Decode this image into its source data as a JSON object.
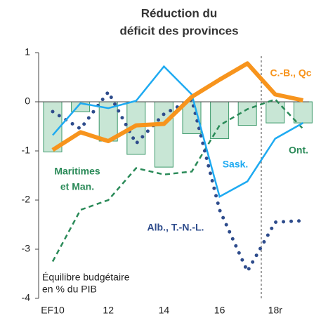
{
  "chart_data": {
    "type": "combo",
    "title": [
      "Réduction du",
      "déficit des provinces"
    ],
    "note": [
      "Équilibre budgétaire",
      "en % du PIB"
    ],
    "categories": [
      "EF10",
      null,
      "12",
      null,
      "14",
      null,
      "16",
      null,
      "18r",
      null
    ],
    "values": [
      -1.02,
      -0.2,
      -0.8,
      -1.07,
      -1.33,
      -0.65,
      -0.75,
      -0.48,
      -0.43,
      -0.43
    ],
    "bar_color": "#c8e6d5",
    "bar_edge": "#3e9a6c",
    "series": [
      {
        "name": [
          "Maritimes",
          "et Man."
        ],
        "color": "#2a8a58",
        "style": "dashed",
        "values": [
          -3.25,
          -2.2,
          -2.0,
          -1.35,
          -1.48,
          -1.42,
          -0.48,
          -0.15,
          0.05,
          -0.55
        ]
      },
      {
        "name": "Alb., T.-N.-L.",
        "color": "#2e4c8c",
        "style": "dotted",
        "values": [
          -0.2,
          -0.55,
          0.2,
          -0.85,
          -0.25,
          0.05,
          -2.2,
          -3.45,
          -2.45,
          -2.42
        ]
      },
      {
        "name": "Sask.",
        "color": "#1eaaf1",
        "style": "solid",
        "values": [
          -0.68,
          -0.03,
          -0.13,
          0.02,
          0.72,
          0.15,
          -1.93,
          -1.62,
          -0.75,
          -0.43
        ]
      },
      {
        "name": "C.-B., Qc",
        "color": "#f7941d",
        "style": "thick",
        "values": [
          -0.98,
          -0.62,
          -0.8,
          -0.48,
          -0.45,
          0.1,
          0.45,
          0.78,
          0.15,
          0.03
        ]
      },
      {
        "name": "Ont.",
        "color": "#2a8a58",
        "style": "label"
      }
    ],
    "ylim": [
      -4,
      1
    ],
    "yticks": [
      1,
      0,
      -1,
      -2,
      -3,
      -4
    ]
  }
}
